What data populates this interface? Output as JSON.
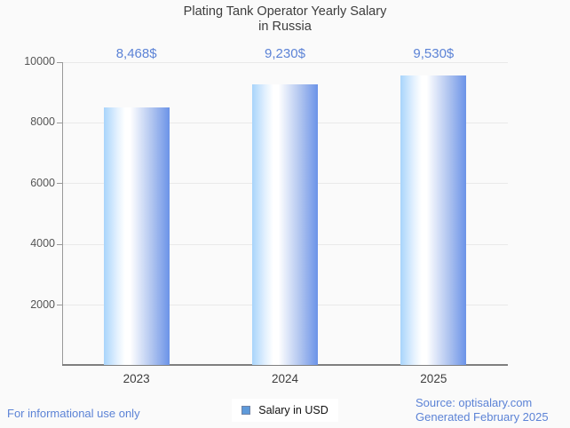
{
  "title": {
    "line1": "Plating Tank Operator Yearly Salary",
    "line2": "in Russia"
  },
  "chart_data": {
    "type": "bar",
    "title": "Plating Tank Operator Yearly Salary in Russia",
    "categories": [
      "2023",
      "2024",
      "2025"
    ],
    "series": [
      {
        "name": "Salary in USD",
        "values": [
          8468,
          9230,
          9530
        ]
      }
    ],
    "value_labels": [
      "8,468$",
      "9,230$",
      "9,530$"
    ],
    "xlabel": "",
    "ylabel": "",
    "ylim": [
      0,
      10000
    ],
    "yticks": [
      2000,
      4000,
      6000,
      8000,
      10000
    ],
    "ytick_labels": [
      "2000",
      "4000",
      "6000",
      "8000",
      "10000"
    ],
    "grid": true,
    "legend_position": "bottom-center"
  },
  "legend": {
    "label": "Salary in USD",
    "swatch_color": "#5e9ada"
  },
  "footer": {
    "left_note": "For informational use only",
    "source_line": "Source: optisalary.com",
    "generated_line": "Generated February 2025"
  },
  "colors": {
    "background": "#fafafa",
    "accent_blue": "#5c83d6",
    "bar_gradient_left": "#a8d4fb",
    "bar_gradient_mid": "#ffffff",
    "bar_gradient_right": "#6b93e8",
    "axis": "#7f7f7f",
    "grid": "#e9e9e9",
    "title_text": "#3d3d3d"
  }
}
